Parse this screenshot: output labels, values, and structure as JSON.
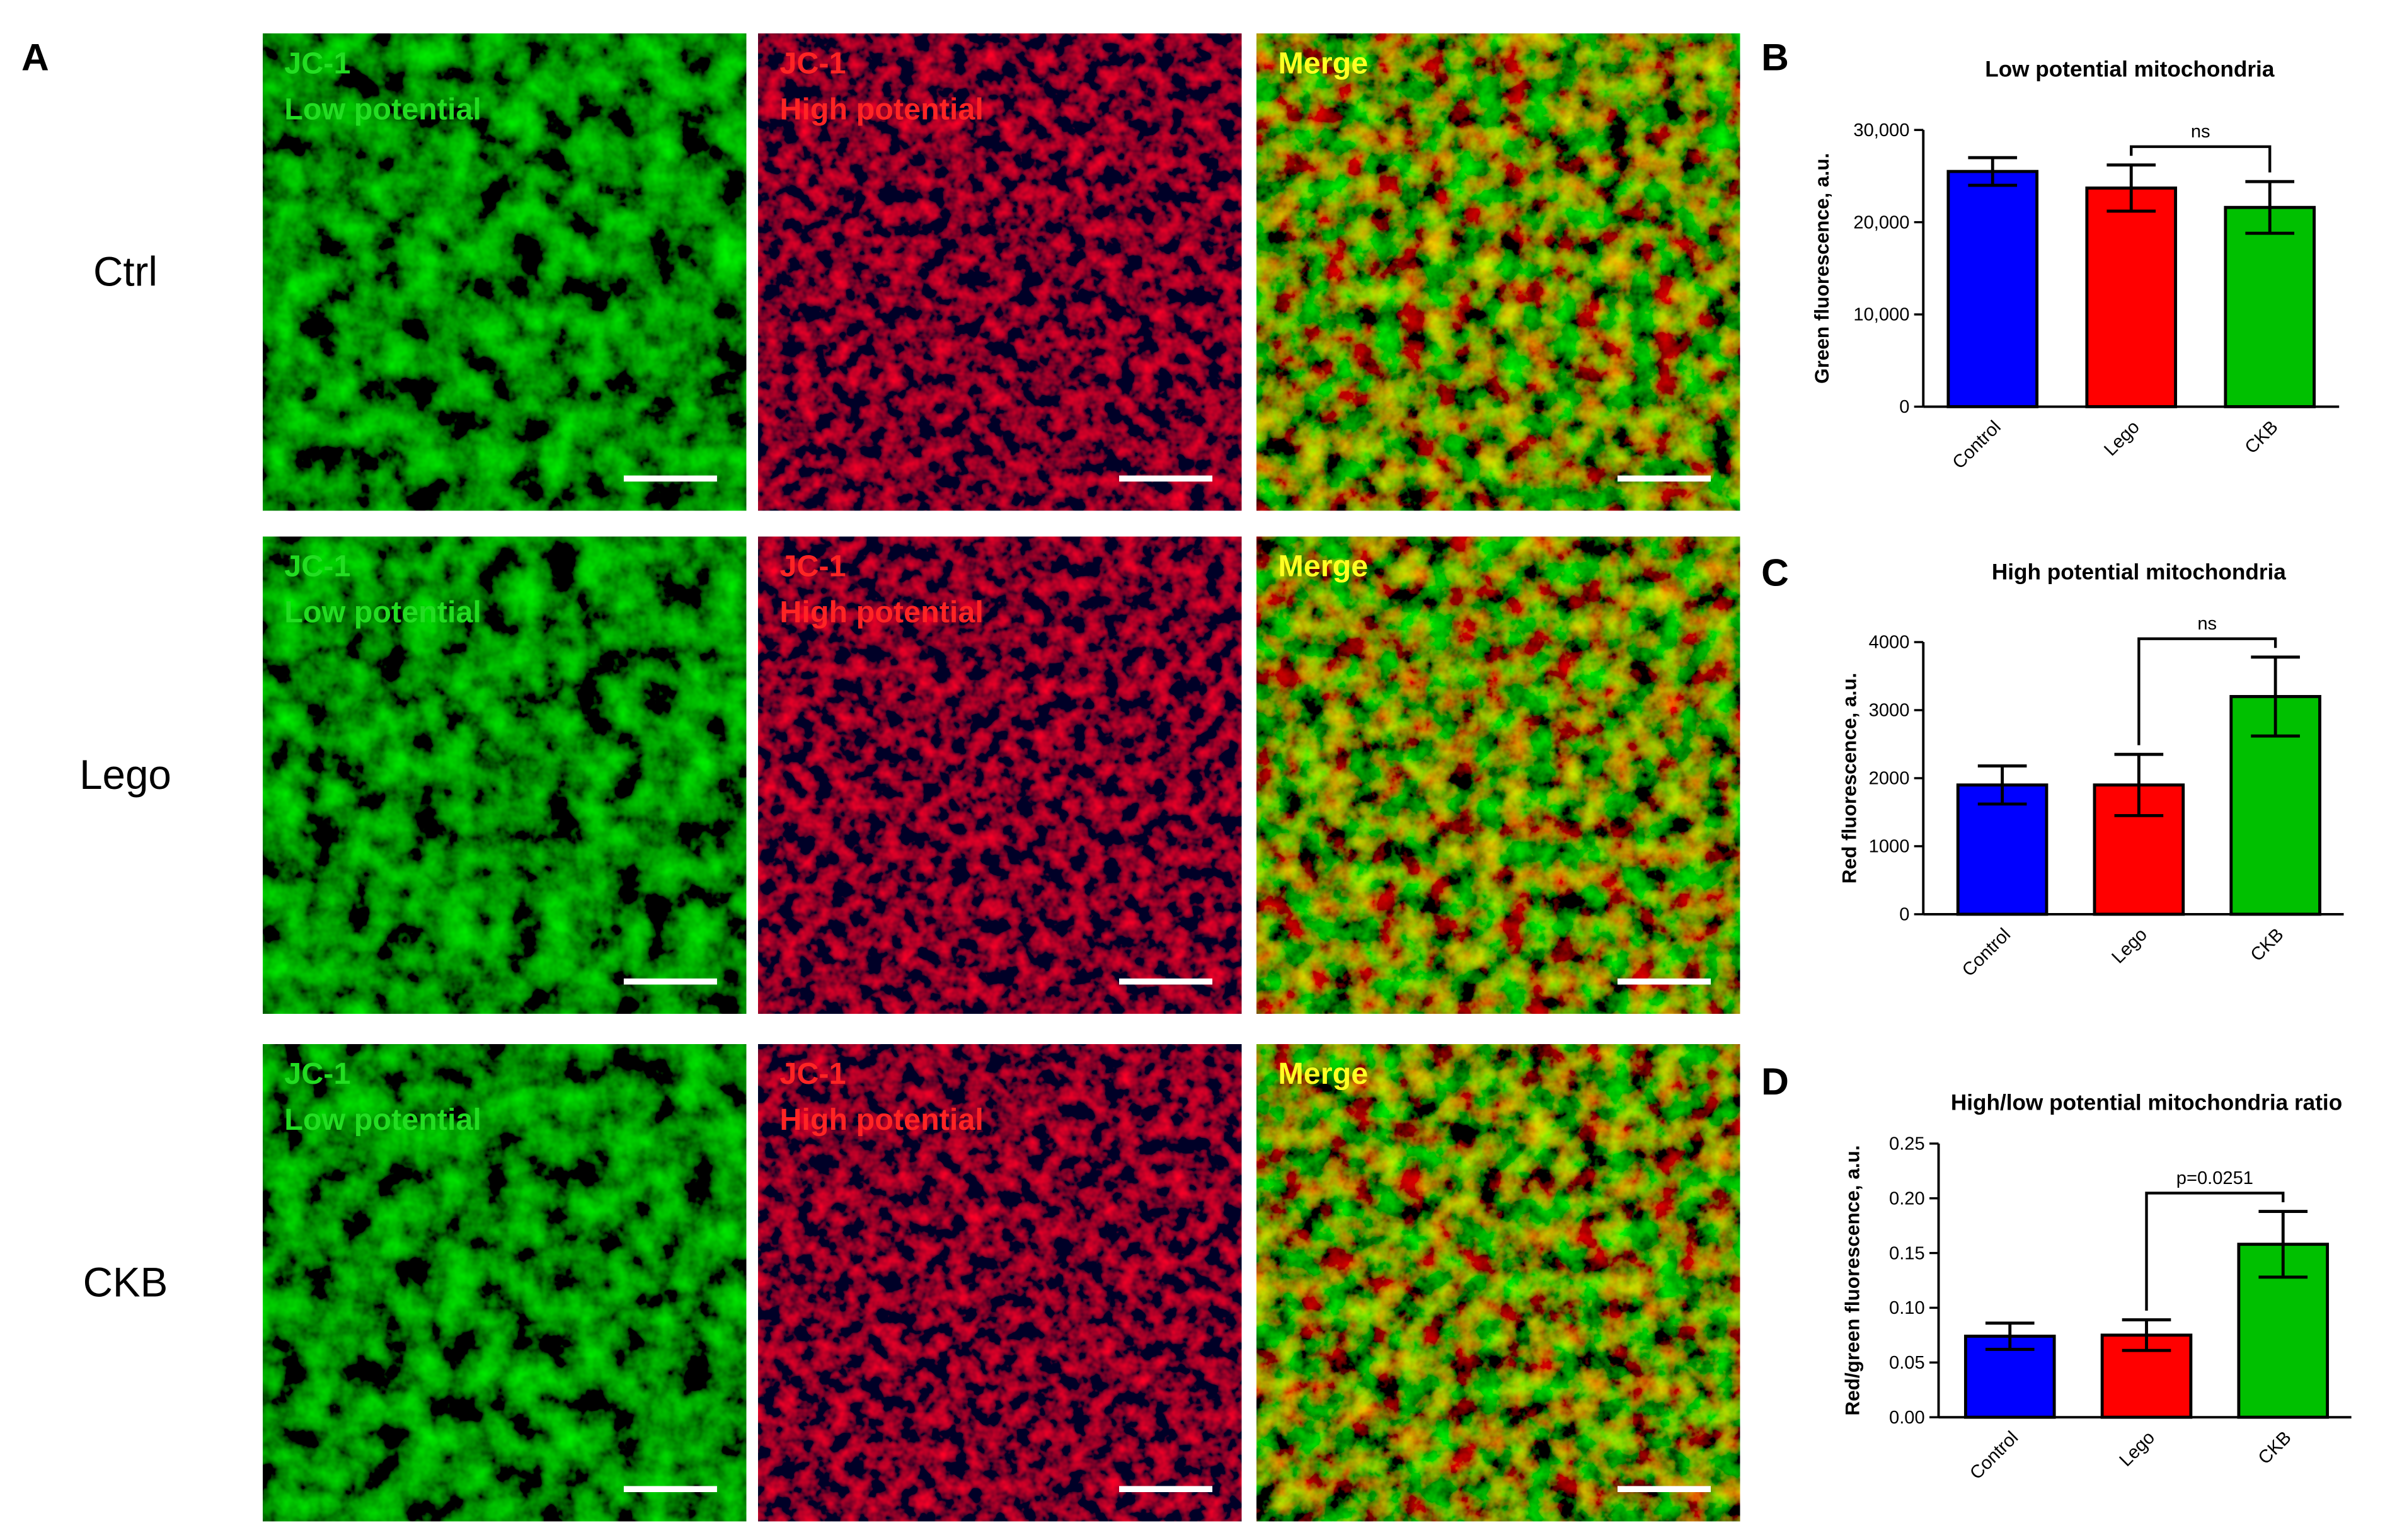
{
  "panel_labels": [
    "A",
    "B",
    "C",
    "D"
  ],
  "panel_a": {
    "rows": [
      "Ctrl",
      "Lego",
      "CKB"
    ],
    "columns": [
      {
        "line1": "JC-1",
        "line2": "Low potential"
      },
      {
        "line1": "JC-1",
        "line2": "High potential"
      },
      {
        "line1": "Merge"
      }
    ]
  },
  "chart_data": [
    {
      "type": "bar",
      "title": "Low potential mitochondria",
      "y_label": "Green fluorescence, a.u.",
      "categories": [
        "Control",
        "Lego",
        "CKB"
      ],
      "values": [
        25500,
        23700,
        21600
      ],
      "errors": [
        1500,
        2500,
        2800
      ],
      "colors": [
        "#0000ff",
        "#ff0000",
        "#00c000"
      ],
      "ylim": [
        0,
        30000
      ],
      "yticks": [
        0,
        {
          "value": 10000,
          "label": "10,000"
        },
        {
          "value": 20000,
          "label": "20,000"
        },
        {
          "value": 30000,
          "label": "30,000"
        }
      ],
      "comparison": {
        "from": 1,
        "to": 2,
        "label": "ns"
      }
    },
    {
      "type": "bar",
      "title": "High potential mitochondria",
      "y_label": "Red fluorescence, a.u.",
      "categories": [
        "Control",
        "Lego",
        "CKB"
      ],
      "values": [
        1900,
        1900,
        3200
      ],
      "errors": [
        280,
        450,
        580
      ],
      "colors": [
        "#0000ff",
        "#ff0000",
        "#00c000"
      ],
      "ylim": [
        0,
        4000
      ],
      "yticks": [
        0,
        1000,
        2000,
        3000,
        4000
      ],
      "comparison": {
        "from": 1,
        "to": 2,
        "label": "ns"
      }
    },
    {
      "type": "bar",
      "title": "High/low potential mitochondria ratio",
      "y_label": "Red/green fluorescence, a.u.",
      "categories": [
        "Control",
        "Lego",
        "CKB"
      ],
      "values": [
        0.074,
        0.075,
        0.158
      ],
      "errors": [
        0.012,
        0.014,
        0.03
      ],
      "colors": [
        "#0000ff",
        "#ff0000",
        "#00c000"
      ],
      "ylim": [
        0,
        0.25
      ],
      "yticks": [
        {
          "value": 0,
          "label": "0.00"
        },
        {
          "value": 0.05,
          "label": "0.05"
        },
        {
          "value": 0.1,
          "label": "0.10"
        },
        {
          "value": 0.15,
          "label": "0.15"
        },
        {
          "value": 0.2,
          "label": "0.20"
        },
        {
          "value": 0.25,
          "label": "0.25"
        }
      ],
      "comparison": {
        "from": 1,
        "to": 2,
        "label": "p=0.0251"
      }
    }
  ]
}
